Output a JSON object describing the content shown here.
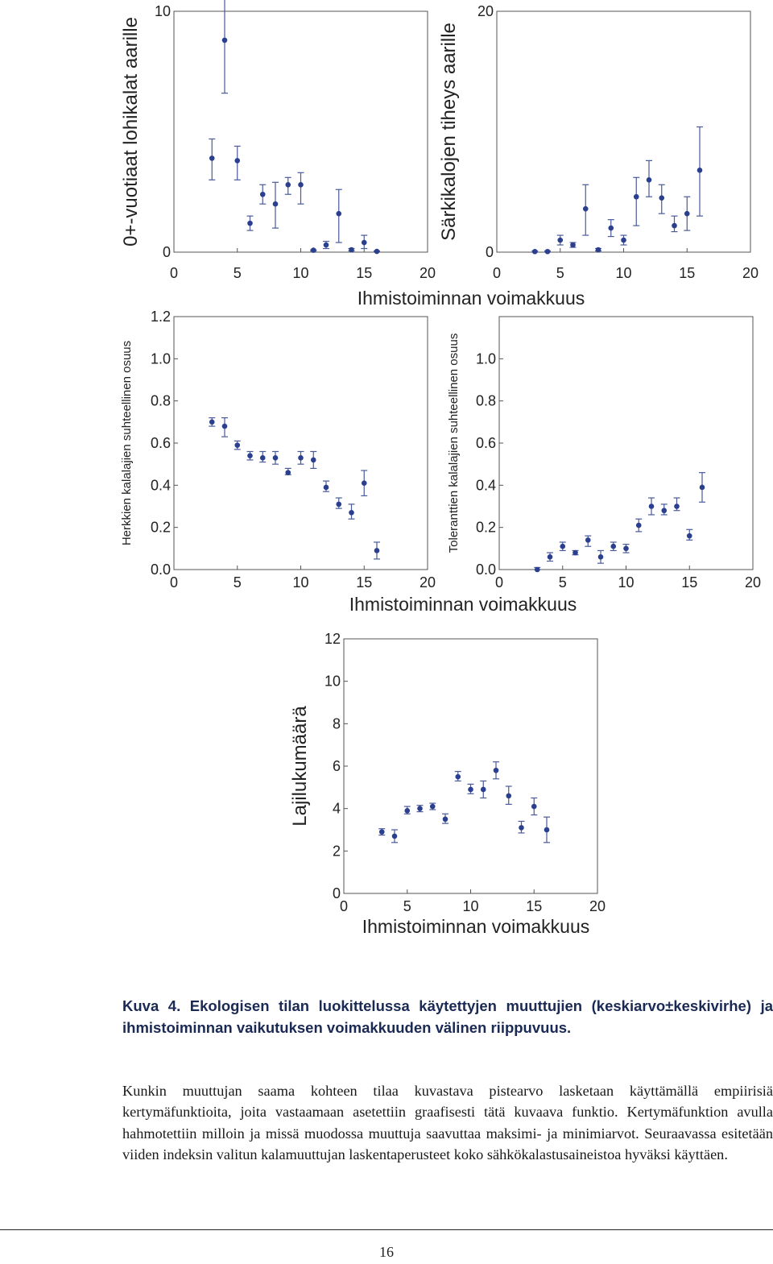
{
  "chart_data": [
    {
      "type": "scatter",
      "xlabel": "",
      "ylabel": "0+-vuotiaat lohikalat aarille",
      "xlim": [
        0,
        20
      ],
      "ylim": [
        0,
        10
      ],
      "xticks": [
        "0",
        "5",
        "10",
        "15",
        "20"
      ],
      "yticks": [
        "0",
        "10"
      ],
      "points": [
        {
          "x": 3,
          "y": 3.9,
          "lo": 3.0,
          "hi": 4.7
        },
        {
          "x": 4,
          "y": 8.8,
          "lo": 6.6,
          "hi": 11.0
        },
        {
          "x": 5,
          "y": 3.8,
          "lo": 3.0,
          "hi": 4.4
        },
        {
          "x": 6,
          "y": 1.2,
          "lo": 0.9,
          "hi": 1.5
        },
        {
          "x": 7,
          "y": 2.4,
          "lo": 2.0,
          "hi": 2.8
        },
        {
          "x": 8,
          "y": 2.0,
          "lo": 1.0,
          "hi": 2.9
        },
        {
          "x": 9,
          "y": 2.8,
          "lo": 2.4,
          "hi": 3.1
        },
        {
          "x": 10,
          "y": 2.8,
          "lo": 2.0,
          "hi": 3.3
        },
        {
          "x": 11,
          "y": 0.08,
          "lo": 0.05,
          "hi": 0.1
        },
        {
          "x": 12,
          "y": 0.3,
          "lo": 0.15,
          "hi": 0.45
        },
        {
          "x": 13,
          "y": 1.6,
          "lo": 0.4,
          "hi": 2.6
        },
        {
          "x": 14,
          "y": 0.1,
          "lo": 0.05,
          "hi": 0.15
        },
        {
          "x": 15,
          "y": 0.4,
          "lo": 0.15,
          "hi": 0.7
        },
        {
          "x": 16,
          "y": 0.03,
          "lo": 0.01,
          "hi": 0.05
        }
      ]
    },
    {
      "type": "scatter",
      "xlabel": "Ihmistoiminnan voimakkuus",
      "ylabel": "Särkikalojen tiheys aarille",
      "xlim": [
        0,
        20
      ],
      "ylim": [
        0,
        20
      ],
      "xticks": [
        "0",
        "5",
        "10",
        "15",
        "20"
      ],
      "yticks": [
        "0",
        "20"
      ],
      "points": [
        {
          "x": 3,
          "y": 0.05,
          "lo": 0.0,
          "hi": 0.1
        },
        {
          "x": 4,
          "y": 0.05,
          "lo": 0.0,
          "hi": 0.1
        },
        {
          "x": 5,
          "y": 1.0,
          "lo": 0.6,
          "hi": 1.4
        },
        {
          "x": 6,
          "y": 0.6,
          "lo": 0.4,
          "hi": 0.8
        },
        {
          "x": 7,
          "y": 3.6,
          "lo": 1.4,
          "hi": 5.6
        },
        {
          "x": 8,
          "y": 0.2,
          "lo": 0.1,
          "hi": 0.3
        },
        {
          "x": 9,
          "y": 2.0,
          "lo": 1.3,
          "hi": 2.7
        },
        {
          "x": 10,
          "y": 1.0,
          "lo": 0.6,
          "hi": 1.4
        },
        {
          "x": 11,
          "y": 4.6,
          "lo": 2.2,
          "hi": 6.2
        },
        {
          "x": 12,
          "y": 6.0,
          "lo": 4.6,
          "hi": 7.6
        },
        {
          "x": 13,
          "y": 4.5,
          "lo": 3.2,
          "hi": 5.6
        },
        {
          "x": 14,
          "y": 2.2,
          "lo": 1.7,
          "hi": 3.0
        },
        {
          "x": 15,
          "y": 3.2,
          "lo": 1.8,
          "hi": 4.6
        },
        {
          "x": 16,
          "y": 6.8,
          "lo": 3.0,
          "hi": 10.4
        }
      ]
    },
    {
      "type": "scatter",
      "xlabel": "",
      "ylabel": "Herkkien kalalajien suhteellinen osuus",
      "xlim": [
        0,
        20
      ],
      "ylim": [
        0,
        1.2
      ],
      "xticks": [
        "0",
        "5",
        "10",
        "15",
        "20"
      ],
      "yticks": [
        "0.0",
        "0.2",
        "0.4",
        "0.6",
        "0.8",
        "1.0",
        "1.2"
      ],
      "points": [
        {
          "x": 3,
          "y": 0.7,
          "lo": 0.68,
          "hi": 0.72
        },
        {
          "x": 4,
          "y": 0.68,
          "lo": 0.63,
          "hi": 0.72
        },
        {
          "x": 5,
          "y": 0.59,
          "lo": 0.57,
          "hi": 0.61
        },
        {
          "x": 6,
          "y": 0.54,
          "lo": 0.52,
          "hi": 0.56
        },
        {
          "x": 7,
          "y": 0.53,
          "lo": 0.51,
          "hi": 0.56
        },
        {
          "x": 8,
          "y": 0.53,
          "lo": 0.5,
          "hi": 0.56
        },
        {
          "x": 9,
          "y": 0.46,
          "lo": 0.45,
          "hi": 0.48
        },
        {
          "x": 10,
          "y": 0.53,
          "lo": 0.5,
          "hi": 0.56
        },
        {
          "x": 11,
          "y": 0.52,
          "lo": 0.48,
          "hi": 0.56
        },
        {
          "x": 12,
          "y": 0.39,
          "lo": 0.37,
          "hi": 0.42
        },
        {
          "x": 13,
          "y": 0.31,
          "lo": 0.29,
          "hi": 0.34
        },
        {
          "x": 14,
          "y": 0.27,
          "lo": 0.24,
          "hi": 0.31
        },
        {
          "x": 15,
          "y": 0.41,
          "lo": 0.35,
          "hi": 0.47
        },
        {
          "x": 16,
          "y": 0.09,
          "lo": 0.05,
          "hi": 0.13
        }
      ]
    },
    {
      "type": "scatter",
      "xlabel": "Ihmistoiminnan voimakkuus",
      "ylabel": "Toleranttien kalalajien suhteellinen osuus",
      "xlim": [
        0,
        20
      ],
      "ylim": [
        0,
        1.2
      ],
      "xticks": [
        "0",
        "5",
        "10",
        "15",
        "20"
      ],
      "yticks": [
        "0.0",
        "0.2",
        "0.4",
        "0.6",
        "0.8",
        "1.0"
      ],
      "points": [
        {
          "x": 3,
          "y": 0.0,
          "lo": 0.0,
          "hi": 0.01
        },
        {
          "x": 4,
          "y": 0.06,
          "lo": 0.04,
          "hi": 0.08
        },
        {
          "x": 5,
          "y": 0.11,
          "lo": 0.09,
          "hi": 0.13
        },
        {
          "x": 6,
          "y": 0.08,
          "lo": 0.07,
          "hi": 0.09
        },
        {
          "x": 7,
          "y": 0.14,
          "lo": 0.11,
          "hi": 0.16
        },
        {
          "x": 8,
          "y": 0.06,
          "lo": 0.03,
          "hi": 0.09
        },
        {
          "x": 9,
          "y": 0.11,
          "lo": 0.09,
          "hi": 0.13
        },
        {
          "x": 10,
          "y": 0.1,
          "lo": 0.08,
          "hi": 0.12
        },
        {
          "x": 11,
          "y": 0.21,
          "lo": 0.18,
          "hi": 0.24
        },
        {
          "x": 12,
          "y": 0.3,
          "lo": 0.26,
          "hi": 0.34
        },
        {
          "x": 13,
          "y": 0.28,
          "lo": 0.26,
          "hi": 0.31
        },
        {
          "x": 14,
          "y": 0.3,
          "lo": 0.28,
          "hi": 0.34
        },
        {
          "x": 15,
          "y": 0.16,
          "lo": 0.14,
          "hi": 0.19
        },
        {
          "x": 16,
          "y": 0.39,
          "lo": 0.32,
          "hi": 0.46
        }
      ]
    },
    {
      "type": "scatter",
      "xlabel": "Ihmistoiminnan voimakkuus",
      "ylabel": "Lajilukumäärä",
      "xlim": [
        0,
        20
      ],
      "ylim": [
        0,
        12
      ],
      "xticks": [
        "0",
        "5",
        "10",
        "15",
        "20"
      ],
      "yticks": [
        "0",
        "2",
        "4",
        "6",
        "8",
        "10",
        "12"
      ],
      "points": [
        {
          "x": 3,
          "y": 2.9,
          "lo": 2.75,
          "hi": 3.05
        },
        {
          "x": 4,
          "y": 2.7,
          "lo": 2.4,
          "hi": 3.0
        },
        {
          "x": 5,
          "y": 3.9,
          "lo": 3.75,
          "hi": 4.1
        },
        {
          "x": 6,
          "y": 4.0,
          "lo": 3.85,
          "hi": 4.15
        },
        {
          "x": 7,
          "y": 4.1,
          "lo": 3.95,
          "hi": 4.25
        },
        {
          "x": 8,
          "y": 3.5,
          "lo": 3.3,
          "hi": 3.75
        },
        {
          "x": 9,
          "y": 5.5,
          "lo": 5.3,
          "hi": 5.75
        },
        {
          "x": 10,
          "y": 4.9,
          "lo": 4.7,
          "hi": 5.15
        },
        {
          "x": 11,
          "y": 4.9,
          "lo": 4.5,
          "hi": 5.3
        },
        {
          "x": 12,
          "y": 5.8,
          "lo": 5.4,
          "hi": 6.2
        },
        {
          "x": 13,
          "y": 4.6,
          "lo": 4.2,
          "hi": 5.05
        },
        {
          "x": 14,
          "y": 3.1,
          "lo": 2.85,
          "hi": 3.4
        },
        {
          "x": 15,
          "y": 4.1,
          "lo": 3.7,
          "hi": 4.5
        },
        {
          "x": 16,
          "y": 3.0,
          "lo": 2.4,
          "hi": 3.6
        }
      ]
    }
  ],
  "caption": {
    "title": "Kuva 4. Ekologisen tilan luokittelussa käytettyjen muuttujien (keskiarvo±keskivirhe) ja ihmistoiminnan vaikutuksen voimakkuuden välinen riippuvuus."
  },
  "body_paragraph": "Kunkin muuttujan saama kohteen tilaa kuvastava pistearvo lasketaan käyttämällä empiirisiä kertymäfunktioita, joita vastaamaan asetettiin graafisesti tätä kuvaava funktio. Kertymäfunktion avulla hahmotettiin milloin ja missä muodossa muuttuja saavuttaa maksimi- ja minimiarvot. Seuraavassa esitetään viiden indeksin valitun kalamuuttujan laskentaperusteet koko sähkökalastusaineistoa hyväksi käyttäen.",
  "page_number": "16",
  "colors": {
    "marker": "#2b3f8f",
    "errorbar": "#4a5a9a",
    "axis": "#555555",
    "text": "#222222"
  }
}
